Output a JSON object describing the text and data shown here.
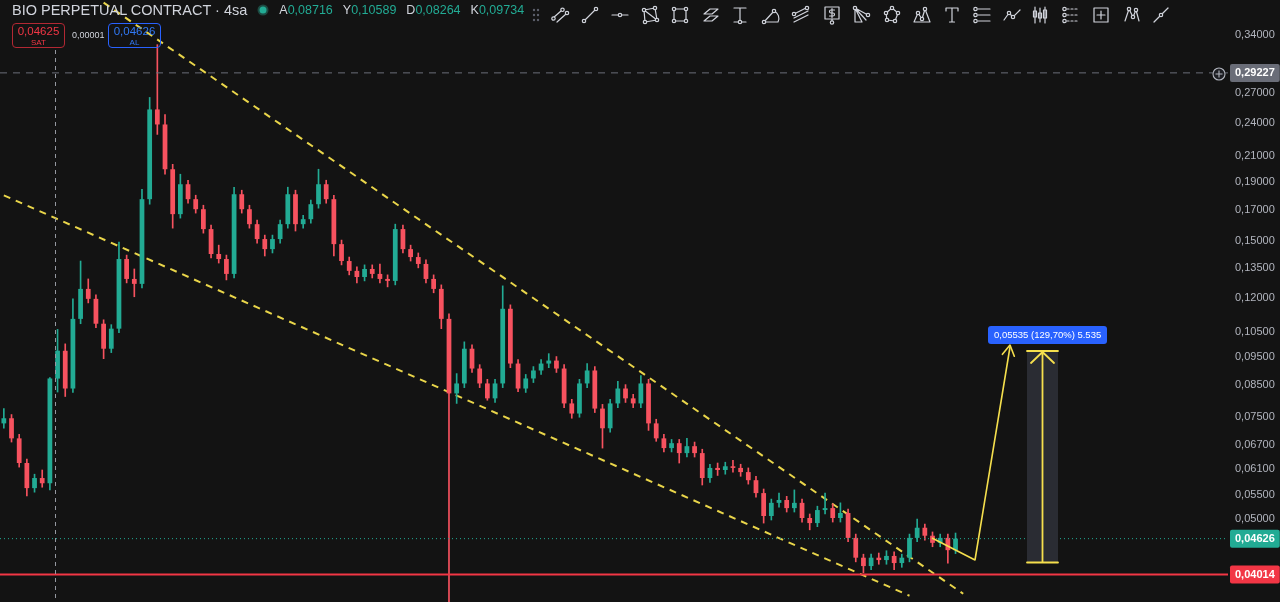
{
  "chart_data": {
    "type": "candlestick",
    "title": "BIO PERPETUAL CONTRACT · 4sa",
    "categories": [
      null,
      null,
      null,
      null,
      null,
      null,
      null,
      null,
      null,
      null,
      null,
      null,
      null,
      null,
      null,
      null,
      null,
      null,
      null,
      null,
      null,
      null,
      null,
      null,
      null,
      null,
      null,
      null,
      null,
      null,
      null,
      null,
      null,
      null,
      null,
      null,
      null,
      null,
      null,
      null,
      null,
      null,
      null,
      null,
      null,
      null,
      null,
      null,
      null,
      null,
      null,
      null,
      null,
      null,
      null,
      null,
      null,
      null,
      null,
      null,
      null,
      null,
      null,
      null,
      null,
      null,
      null,
      null,
      null,
      null,
      null,
      null,
      null,
      null,
      null,
      null,
      null,
      null,
      null,
      null,
      null,
      null,
      null,
      null,
      null,
      null,
      null,
      null,
      null,
      null,
      null,
      null,
      null,
      null,
      null,
      null,
      null,
      null,
      null,
      null,
      null,
      null,
      null,
      null,
      null,
      null,
      null,
      null,
      null,
      null,
      null,
      null,
      null,
      null,
      null,
      null,
      null,
      null,
      null,
      null,
      null,
      null,
      null,
      null,
      null,
      null,
      null,
      null,
      null,
      null,
      null,
      null,
      null,
      null,
      null,
      null,
      null,
      null,
      null,
      null,
      null,
      null,
      null,
      null,
      null,
      null,
      null,
      null,
      null,
      null,
      null,
      null,
      null,
      null,
      null,
      null,
      null,
      null,
      null,
      null
    ],
    "ohlc": [
      [
        0.073,
        0.0774,
        0.0716,
        0.0745
      ],
      [
        0.0745,
        0.0756,
        0.0678,
        0.0688
      ],
      [
        0.0688,
        0.0699,
        0.0614,
        0.0624
      ],
      [
        0.0624,
        0.0634,
        0.0548,
        0.0565
      ],
      [
        0.0565,
        0.0597,
        0.0556,
        0.0588
      ],
      [
        0.0588,
        0.0607,
        0.0567,
        0.0576
      ],
      [
        0.0576,
        0.0875,
        0.0561,
        0.0872
      ],
      [
        0.08716,
        0.10589,
        0.08264,
        0.09734
      ],
      [
        0.0973,
        0.1,
        0.0812,
        0.0838
      ],
      [
        0.0838,
        0.1195,
        0.0825,
        0.1104
      ],
      [
        0.1104,
        0.1388,
        0.1083,
        0.1243
      ],
      [
        0.1243,
        0.1293,
        0.1176,
        0.1195
      ],
      [
        0.1195,
        0.1214,
        0.1066,
        0.1083
      ],
      [
        0.1083,
        0.11,
        0.0943,
        0.0981
      ],
      [
        0.0981,
        0.1079,
        0.0966,
        0.1062
      ],
      [
        0.1062,
        0.1496,
        0.1045,
        0.1399
      ],
      [
        0.1399,
        0.1421,
        0.1273,
        0.1293
      ],
      [
        0.1293,
        0.1345,
        0.1205,
        0.1268
      ],
      [
        0.1268,
        0.1844,
        0.1248,
        0.1773
      ],
      [
        0.1773,
        0.2652,
        0.1738,
        0.2529
      ],
      [
        0.2529,
        0.3268,
        0.2291,
        0.2383
      ],
      [
        0.2383,
        0.2479,
        0.1957,
        0.1996
      ],
      [
        0.1996,
        0.2035,
        0.1581,
        0.1671
      ],
      [
        0.1671,
        0.1957,
        0.1645,
        0.1881
      ],
      [
        0.1881,
        0.1911,
        0.1745,
        0.1773
      ],
      [
        0.1773,
        0.1801,
        0.1678,
        0.1704
      ],
      [
        0.1704,
        0.1731,
        0.155,
        0.1575
      ],
      [
        0.1575,
        0.16,
        0.1405,
        0.1427
      ],
      [
        0.1427,
        0.1478,
        0.1377,
        0.1399
      ],
      [
        0.1399,
        0.1421,
        0.1288,
        0.1319
      ],
      [
        0.1319,
        0.1859,
        0.1298,
        0.1808
      ],
      [
        0.1808,
        0.1837,
        0.1678,
        0.1704
      ],
      [
        0.1704,
        0.1731,
        0.1581,
        0.1606
      ],
      [
        0.1606,
        0.1632,
        0.149,
        0.1514
      ],
      [
        0.1514,
        0.1538,
        0.1416,
        0.1455
      ],
      [
        0.1455,
        0.1538,
        0.1433,
        0.1514
      ],
      [
        0.1514,
        0.1632,
        0.149,
        0.1606
      ],
      [
        0.1606,
        0.1859,
        0.1581,
        0.1808
      ],
      [
        0.1808,
        0.1837,
        0.1563,
        0.1606
      ],
      [
        0.1606,
        0.1664,
        0.1581,
        0.1638
      ],
      [
        0.1638,
        0.1766,
        0.1613,
        0.1738
      ],
      [
        0.1738,
        0.1996,
        0.1711,
        0.1881
      ],
      [
        0.1881,
        0.1911,
        0.1745,
        0.1773
      ],
      [
        0.1773,
        0.1801,
        0.1416,
        0.1484
      ],
      [
        0.1484,
        0.1508,
        0.1367,
        0.1388
      ],
      [
        0.1388,
        0.141,
        0.1314,
        0.1335
      ],
      [
        0.1335,
        0.1356,
        0.1273,
        0.1303
      ],
      [
        0.1303,
        0.1367,
        0.1283,
        0.1345
      ],
      [
        0.1345,
        0.1367,
        0.1298,
        0.1319
      ],
      [
        0.1319,
        0.1372,
        0.1273,
        0.1293
      ],
      [
        0.1293,
        0.1314,
        0.1253,
        0.1283
      ],
      [
        0.1283,
        0.1606,
        0.1263,
        0.1575
      ],
      [
        0.1575,
        0.16,
        0.1433,
        0.1455
      ],
      [
        0.1455,
        0.1478,
        0.1388,
        0.141
      ],
      [
        0.141,
        0.1433,
        0.1351,
        0.1372
      ],
      [
        0.1372,
        0.1394,
        0.1273,
        0.1293
      ],
      [
        0.1293,
        0.1314,
        0.1224,
        0.1243
      ],
      [
        0.1243,
        0.1263,
        0.1062,
        0.1104
      ],
      [
        0.1104,
        0.1126,
        0.036,
        0.0822
      ],
      [
        0.0822,
        0.0889,
        0.079,
        0.0855
      ],
      [
        0.0855,
        0.1008,
        0.0841,
        0.0981
      ],
      [
        0.0981,
        0.0996,
        0.0893,
        0.0907
      ],
      [
        0.0907,
        0.0921,
        0.0841,
        0.0855
      ],
      [
        0.0855,
        0.0869,
        0.08,
        0.0806
      ],
      [
        0.0806,
        0.0869,
        0.0793,
        0.0855
      ],
      [
        0.0855,
        0.1258,
        0.0841,
        0.1149
      ],
      [
        0.1149,
        0.1167,
        0.091,
        0.0925
      ],
      [
        0.0925,
        0.094,
        0.0828,
        0.0838
      ],
      [
        0.0838,
        0.0886,
        0.0825,
        0.0872
      ],
      [
        0.0872,
        0.0914,
        0.0858,
        0.09
      ],
      [
        0.09,
        0.094,
        0.0886,
        0.0925
      ],
      [
        0.0925,
        0.0962,
        0.091,
        0.0936
      ],
      [
        0.0936,
        0.0951,
        0.0893,
        0.0907
      ],
      [
        0.0907,
        0.0921,
        0.0777,
        0.079
      ],
      [
        0.079,
        0.0803,
        0.0745,
        0.0759
      ],
      [
        0.0759,
        0.0869,
        0.0748,
        0.0855
      ],
      [
        0.0855,
        0.0925,
        0.0841,
        0.09
      ],
      [
        0.09,
        0.0914,
        0.0762,
        0.0774
      ],
      [
        0.0774,
        0.0787,
        0.0662,
        0.0716
      ],
      [
        0.0716,
        0.0803,
        0.0705,
        0.079
      ],
      [
        0.079,
        0.0862,
        0.0777,
        0.0838
      ],
      [
        0.0838,
        0.0851,
        0.0793,
        0.0806
      ],
      [
        0.0806,
        0.0819,
        0.0777,
        0.079
      ],
      [
        0.079,
        0.0882,
        0.0777,
        0.0855
      ],
      [
        0.0855,
        0.0869,
        0.071,
        0.073
      ],
      [
        0.073,
        0.0742,
        0.068,
        0.0688
      ],
      [
        0.0688,
        0.0699,
        0.0652,
        0.0662
      ],
      [
        0.0662,
        0.0685,
        0.0652,
        0.0675
      ],
      [
        0.0675,
        0.0685,
        0.0624,
        0.0649
      ],
      [
        0.0649,
        0.0688,
        0.0639,
        0.0667
      ],
      [
        0.0667,
        0.0678,
        0.0639,
        0.0649
      ],
      [
        0.0649,
        0.0659,
        0.0572,
        0.0588
      ],
      [
        0.0588,
        0.0621,
        0.0578,
        0.0612
      ],
      [
        0.0612,
        0.0624,
        0.0594,
        0.0607
      ],
      [
        0.0607,
        0.0626,
        0.0597,
        0.0616
      ],
      [
        0.0616,
        0.0631,
        0.0602,
        0.0612
      ],
      [
        0.0612,
        0.0621,
        0.0592,
        0.0602
      ],
      [
        0.0602,
        0.0612,
        0.0574,
        0.0583
      ],
      [
        0.0583,
        0.0592,
        0.0545,
        0.0554
      ],
      [
        0.0554,
        0.0563,
        0.0492,
        0.0506
      ],
      [
        0.0506,
        0.0541,
        0.0498,
        0.0533
      ],
      [
        0.0533,
        0.0554,
        0.0524,
        0.0539
      ],
      [
        0.0539,
        0.0547,
        0.0514,
        0.0522
      ],
      [
        0.0522,
        0.0561,
        0.0514,
        0.0533
      ],
      [
        0.0533,
        0.0541,
        0.0494,
        0.0502
      ],
      [
        0.0502,
        0.051,
        0.0479,
        0.0492
      ],
      [
        0.0492,
        0.0526,
        0.0485,
        0.0518
      ],
      [
        0.0518,
        0.0554,
        0.051,
        0.0522
      ],
      [
        0.0522,
        0.0531,
        0.0494,
        0.0502
      ],
      [
        0.0502,
        0.0533,
        0.0494,
        0.0512
      ],
      [
        0.0512,
        0.052,
        0.0457,
        0.0464
      ],
      [
        0.0464,
        0.0471,
        0.0422,
        0.0429
      ],
      [
        0.0429,
        0.0435,
        0.0404,
        0.0415
      ],
      [
        0.0415,
        0.0435,
        0.0409,
        0.0429
      ],
      [
        0.0429,
        0.0437,
        0.0418,
        0.0425
      ],
      [
        0.0425,
        0.0441,
        0.0418,
        0.0432
      ],
      [
        0.0432,
        0.0439,
        0.0409,
        0.042
      ],
      [
        0.042,
        0.0435,
        0.0413,
        0.0429
      ],
      [
        0.0429,
        0.0471,
        0.0422,
        0.0464
      ],
      [
        0.0464,
        0.05,
        0.0457,
        0.0483
      ],
      [
        0.0483,
        0.049,
        0.046,
        0.0468
      ],
      [
        0.0468,
        0.0475,
        0.0448,
        0.0455
      ],
      [
        0.0455,
        0.0471,
        0.0448,
        0.0464
      ],
      [
        0.0464,
        0.0471,
        0.042,
        0.0442
      ],
      [
        0.0442,
        0.0473,
        0.0436,
        0.04626
      ],
      null,
      null,
      null,
      null,
      null,
      null,
      null,
      null,
      null,
      null,
      null,
      null,
      null,
      null,
      null,
      null,
      null,
      null,
      null,
      null,
      null,
      null,
      null,
      null,
      null,
      null,
      null,
      null,
      null,
      null,
      null,
      null,
      null,
      null,
      null
    ],
    "colors": [
      "#22ab94",
      "#f7525f",
      "#f7525f",
      "#f7525f",
      "#22ab94",
      "#f7525f",
      "#22ab94",
      "#22ab94",
      "#f7525f",
      "#22ab94",
      "#22ab94",
      "#f7525f",
      "#f7525f",
      "#f7525f",
      "#22ab94",
      "#22ab94",
      "#f7525f",
      "#f7525f",
      "#22ab94",
      "#22ab94",
      "#f7525f",
      "#f7525f",
      "#f7525f",
      "#22ab94",
      "#f7525f",
      "#f7525f",
      "#f7525f",
      "#f7525f",
      "#f7525f",
      "#f7525f",
      "#22ab94",
      "#f7525f",
      "#f7525f",
      "#f7525f",
      "#f7525f",
      "#22ab94",
      "#22ab94",
      "#22ab94",
      "#f7525f",
      "#22ab94",
      "#22ab94",
      "#22ab94",
      "#f7525f",
      "#f7525f",
      "#f7525f",
      "#f7525f",
      "#f7525f",
      "#22ab94",
      "#f7525f",
      "#f7525f",
      "#f7525f",
      "#22ab94",
      "#f7525f",
      "#f7525f",
      "#f7525f",
      "#f7525f",
      "#f7525f",
      "#f7525f",
      "#f7525f",
      "#22ab94",
      "#22ab94",
      "#f7525f",
      "#f7525f",
      "#f7525f",
      "#22ab94",
      "#22ab94",
      "#f7525f",
      "#f7525f",
      "#22ab94",
      "#22ab94",
      "#22ab94",
      "#22ab94",
      "#f7525f",
      "#f7525f",
      "#f7525f",
      "#22ab94",
      "#22ab94",
      "#f7525f",
      "#f7525f",
      "#22ab94",
      "#22ab94",
      "#f7525f",
      "#f7525f",
      "#22ab94",
      "#f7525f",
      "#f7525f",
      "#f7525f",
      "#22ab94",
      "#f7525f",
      "#22ab94",
      "#f7525f",
      "#f7525f",
      "#22ab94",
      "#f7525f",
      "#22ab94",
      "#f7525f",
      "#f7525f",
      "#f7525f",
      "#f7525f",
      "#f7525f",
      "#22ab94",
      "#22ab94",
      "#f7525f",
      "#22ab94",
      "#f7525f",
      "#f7525f",
      "#22ab94",
      "#22ab94",
      "#f7525f",
      "#22ab94",
      "#f7525f",
      "#f7525f",
      "#f7525f",
      "#22ab94",
      "#f7525f",
      "#22ab94",
      "#f7525f",
      "#22ab94",
      "#22ab94",
      "#22ab94",
      "#f7525f",
      "#f7525f",
      "#22ab94",
      "#f7525f",
      "#22ab94",
      null,
      null,
      null,
      null,
      null,
      null,
      null,
      null,
      null,
      null,
      null,
      null,
      null,
      null,
      null,
      null,
      null,
      null,
      null,
      null,
      null,
      null,
      null,
      null,
      null,
      null,
      null,
      null,
      null,
      null,
      null,
      null,
      null,
      null,
      null
    ],
    "series": [
      {
        "type": "line",
        "color": "#e9d54a",
        "line_style": "dashed",
        "values": [
          null,
          null,
          null,
          null,
          null,
          null,
          null,
          null,
          null,
          null,
          null,
          null,
          null,
          0.386,
          null,
          null,
          null,
          null,
          null,
          null,
          null,
          null,
          null,
          null,
          null,
          null,
          null,
          null,
          null,
          null,
          null,
          null,
          null,
          null,
          null,
          null,
          null,
          null,
          null,
          null,
          null,
          null,
          null,
          null,
          null,
          null,
          null,
          null,
          null,
          null,
          null,
          null,
          null,
          null,
          null,
          null,
          null,
          null,
          null,
          null,
          null,
          null,
          null,
          null,
          null,
          null,
          null,
          null,
          null,
          null,
          null,
          null,
          null,
          null,
          null,
          null,
          null,
          null,
          null,
          null,
          null,
          null,
          null,
          null,
          null,
          null,
          null,
          null,
          null,
          null,
          null,
          null,
          null,
          null,
          null,
          null,
          null,
          null,
          null,
          null,
          null,
          null,
          null,
          null,
          null,
          null,
          null,
          null,
          null,
          null,
          null,
          null,
          null,
          null,
          null,
          null,
          null,
          null,
          null,
          null,
          null,
          null,
          null,
          null,
          null,
          0.0372,
          null,
          null,
          null,
          null,
          null,
          null,
          null,
          null,
          null,
          null,
          null,
          null,
          null,
          null,
          null,
          null,
          null,
          null,
          null,
          null,
          null,
          null,
          null,
          null,
          null,
          null,
          null,
          null,
          null,
          null,
          null,
          null,
          null,
          null
        ]
      },
      {
        "type": "line",
        "color": "#e9d54a",
        "line_style": "dashed",
        "values": [
          0.18,
          null,
          null,
          null,
          null,
          null,
          null,
          null,
          null,
          null,
          null,
          null,
          null,
          null,
          null,
          null,
          null,
          null,
          null,
          null,
          null,
          null,
          null,
          null,
          null,
          null,
          null,
          null,
          null,
          null,
          null,
          null,
          null,
          null,
          null,
          null,
          null,
          null,
          null,
          null,
          null,
          null,
          null,
          null,
          null,
          null,
          null,
          null,
          null,
          null,
          null,
          null,
          null,
          null,
          null,
          null,
          null,
          null,
          null,
          null,
          null,
          null,
          null,
          null,
          null,
          null,
          null,
          null,
          null,
          null,
          null,
          null,
          null,
          null,
          null,
          null,
          null,
          null,
          null,
          null,
          null,
          null,
          null,
          null,
          null,
          null,
          null,
          null,
          null,
          null,
          null,
          null,
          null,
          null,
          null,
          null,
          null,
          null,
          null,
          null,
          null,
          null,
          null,
          null,
          null,
          null,
          null,
          null,
          null,
          null,
          null,
          null,
          null,
          null,
          null,
          null,
          null,
          null,
          0.0369,
          null,
          null,
          null,
          null,
          null,
          null,
          null,
          null,
          null,
          null,
          null,
          null,
          null,
          null,
          null,
          null,
          null,
          null,
          null,
          null,
          null,
          null,
          null,
          null,
          null,
          null,
          null,
          null,
          null,
          null,
          null,
          null,
          null,
          null,
          null,
          null,
          null,
          null,
          null,
          null,
          null
        ]
      }
    ],
    "log": true,
    "ylim": [
      0.036,
      0.39
    ],
    "yticks": [
      {
        "value": 0.34,
        "label": "0,34000"
      },
      {
        "value": 0.27,
        "label": "0,27000"
      },
      {
        "value": 0.24,
        "label": "0,24000"
      },
      {
        "value": 0.21,
        "label": "0,21000"
      },
      {
        "value": 0.19,
        "label": "0,19000"
      },
      {
        "value": 0.17,
        "label": "0,17000"
      },
      {
        "value": 0.15,
        "label": "0,15000"
      },
      {
        "value": 0.135,
        "label": "0,13500"
      },
      {
        "value": 0.12,
        "label": "0,12000"
      },
      {
        "value": 0.105,
        "label": "0,10500"
      },
      {
        "value": 0.095,
        "label": "0,09500"
      },
      {
        "value": 0.085,
        "label": "0,08500"
      },
      {
        "value": 0.075,
        "label": "0,07500"
      },
      {
        "value": 0.067,
        "label": "0,06700"
      },
      {
        "value": 0.061,
        "label": "0,06100"
      },
      {
        "value": 0.055,
        "label": "0,05500"
      },
      {
        "value": 0.05,
        "label": "0,05000"
      }
    ],
    "tick_labels": "y",
    "ref_lines": [
      {
        "axis": "y",
        "value": 0.29227,
        "label": "0,29227",
        "color": "#6a6d78",
        "line_style": "dashed"
      },
      {
        "axis": "y",
        "value": 0.04626,
        "label": "0,04626",
        "color": "#22ab94",
        "line_style": "dotted"
      },
      {
        "axis": "y",
        "value": 0.04014,
        "label": "0,04014",
        "color": "#f23645",
        "line_style": "solid"
      }
    ],
    "annotations": [
      "A0,08716",
      "Y0,10589",
      "D0,08264",
      "K0,09734",
      "0,04625",
      "SAT",
      "0,00001",
      "0,04626",
      "AL",
      "0,05535 (129,70%) 5.535"
    ]
  }
}
